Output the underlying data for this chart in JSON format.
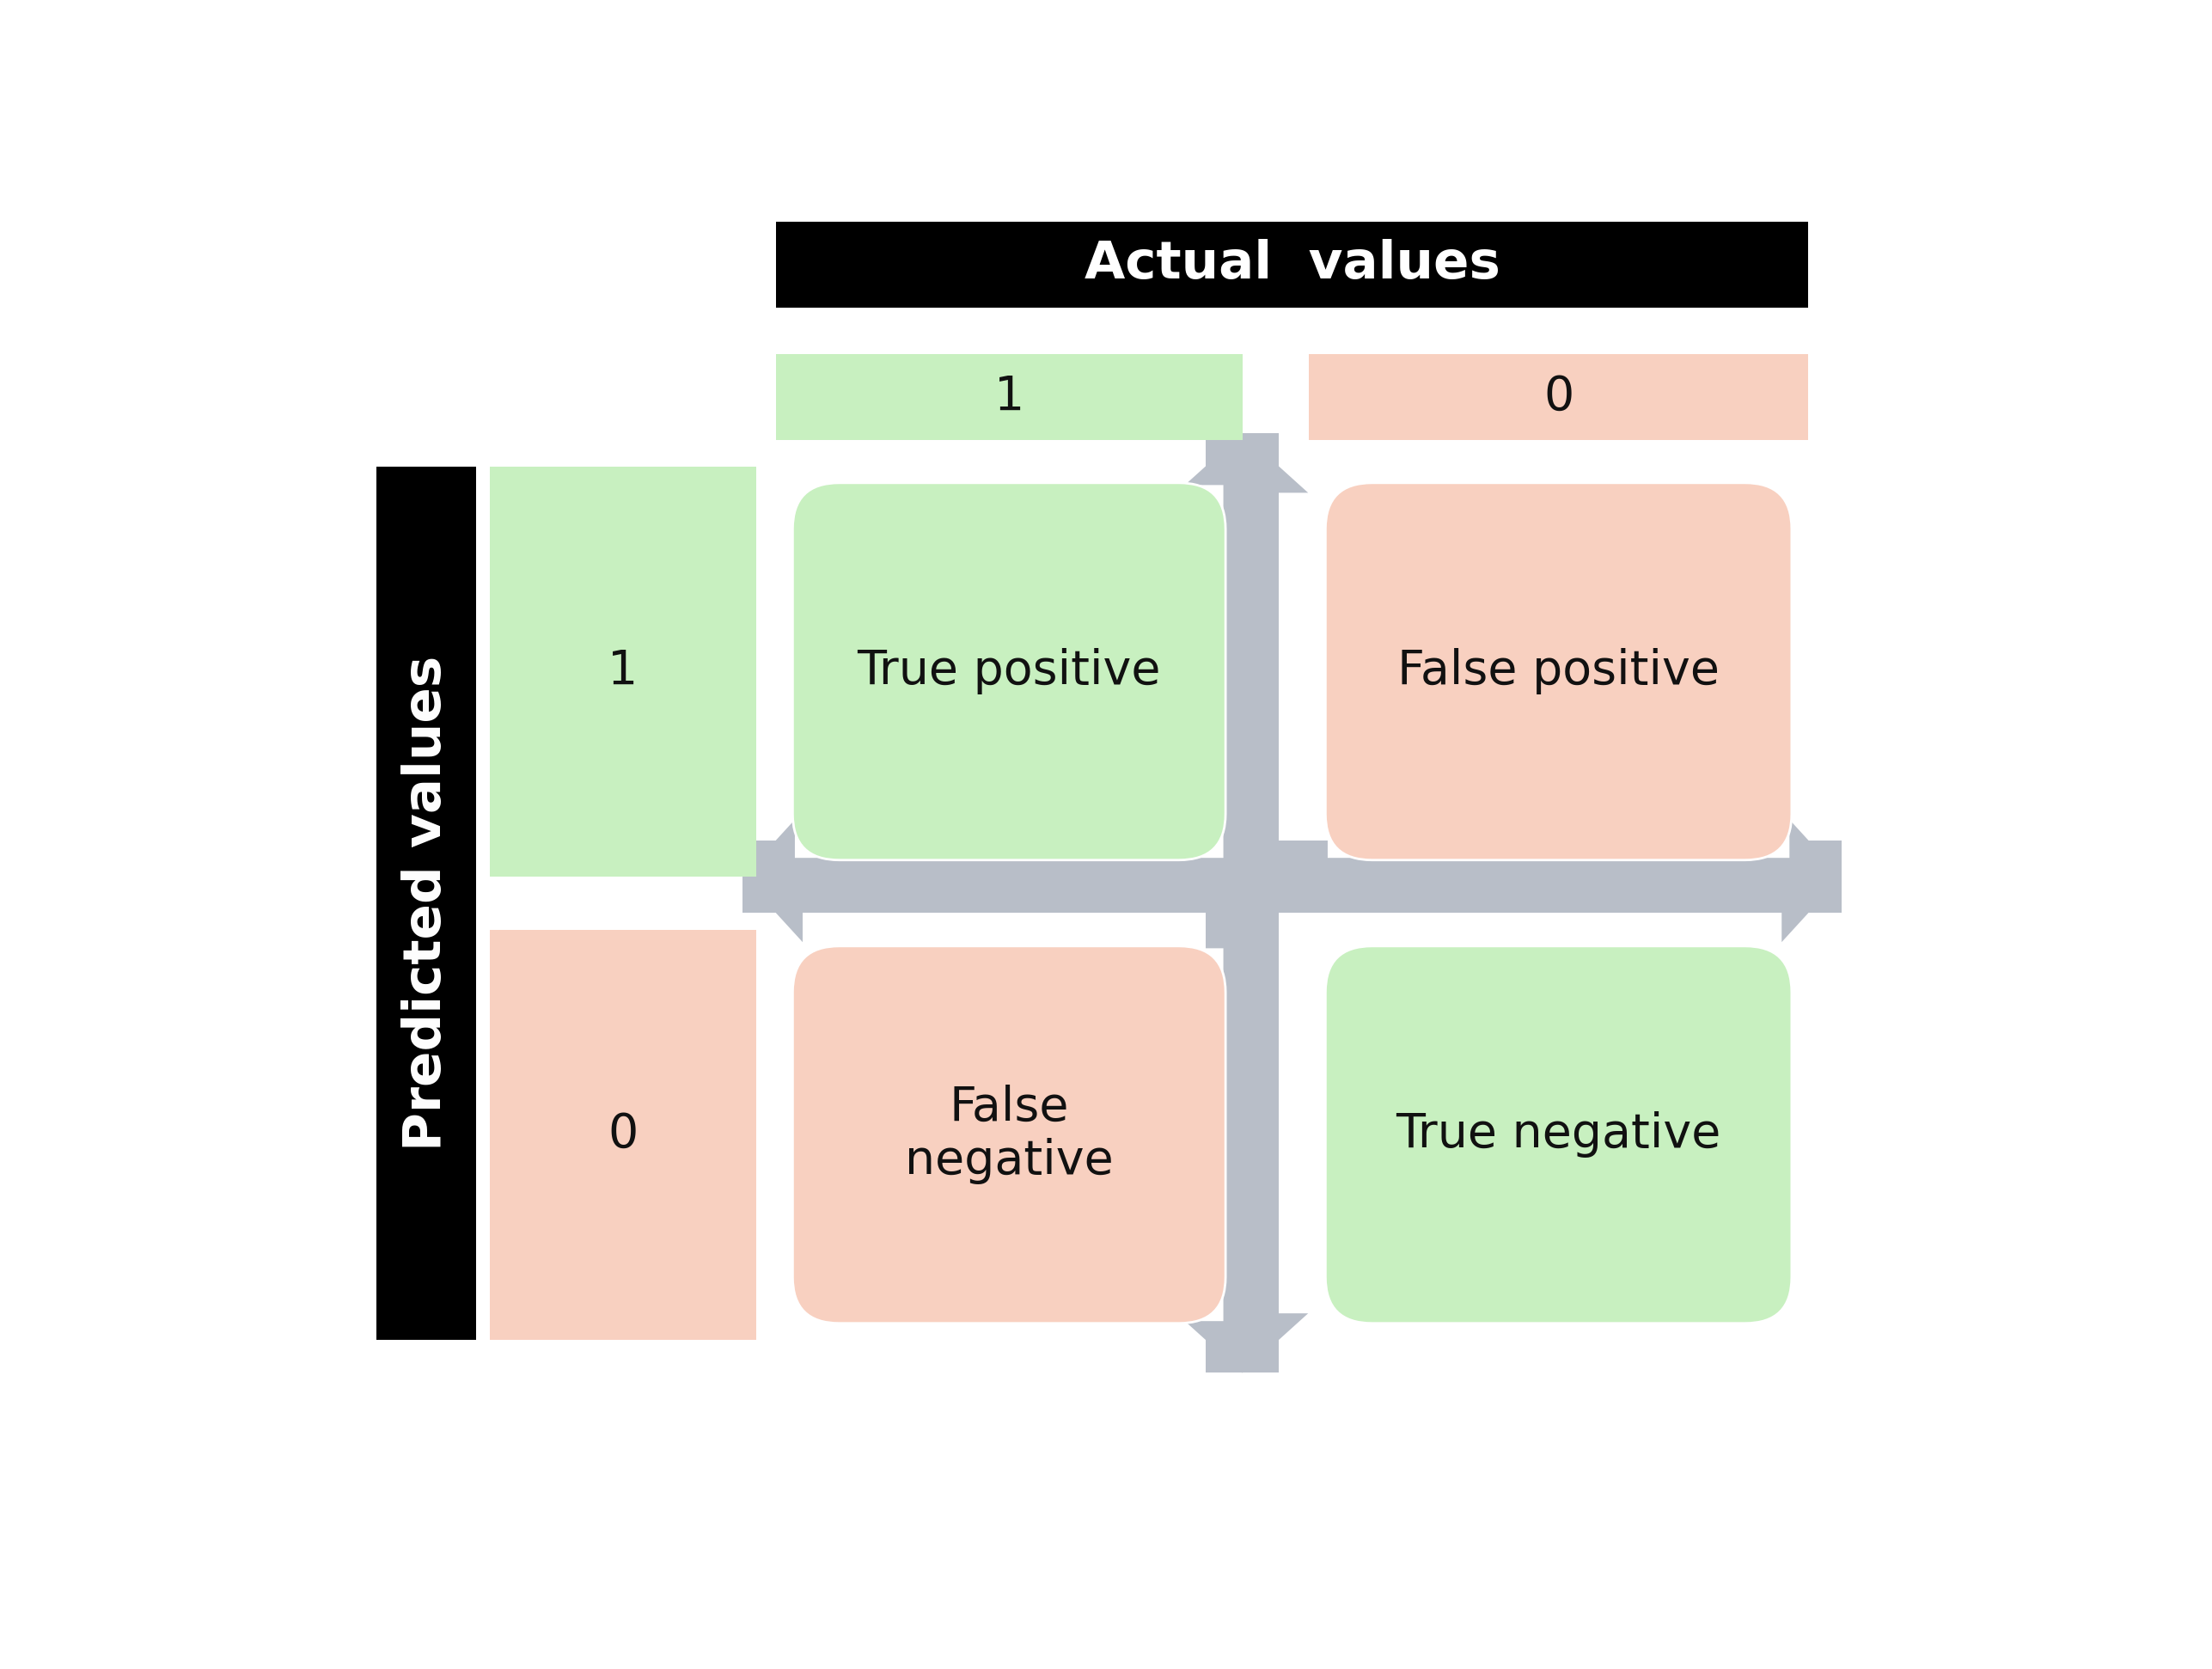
{
  "title": "Actual  values",
  "ylabel": "Predicted values",
  "col_labels": [
    "1",
    "0"
  ],
  "row_labels": [
    "1",
    "0"
  ],
  "cells": [
    [
      "True positive",
      "False positive"
    ],
    [
      "False\nnegative",
      "True negative"
    ]
  ],
  "cell_colors": [
    [
      "#c8f0c0",
      "#f8d0c0"
    ],
    [
      "#f8d0c0",
      "#c8f0c0"
    ]
  ],
  "header_bg": "#000000",
  "header_text_color": "#ffffff",
  "col_header_colors": [
    "#c8f0c0",
    "#f8d0c0"
  ],
  "row_header_colors": [
    "#c8f0c0",
    "#f8d0c0"
  ],
  "title_fontsize": 44,
  "label_fontsize": 44,
  "cell_fontsize": 40,
  "header_label_fontsize": 40,
  "bg_color": "#ffffff",
  "cross_color": "#b8bec8",
  "cell_border_color": "#ffffff"
}
